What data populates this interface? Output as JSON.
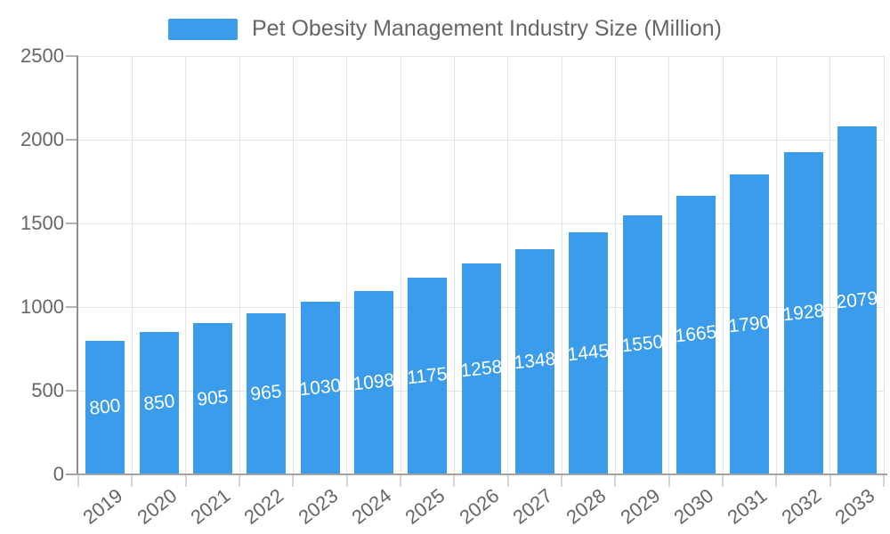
{
  "legend": {
    "series_label": "Pet Obesity Management Industry Size (Million)"
  },
  "chart_data": {
    "type": "bar",
    "title": "Pet Obesity Management Industry Size (Million)",
    "series_name": "Pet Obesity Management Industry Size (Million)",
    "categories": [
      "2019",
      "2020",
      "2021",
      "2022",
      "2023",
      "2024",
      "2025",
      "2026",
      "2027",
      "2028",
      "2029",
      "2030",
      "2031",
      "2032",
      "2033"
    ],
    "values": [
      800,
      850,
      905,
      965,
      1030,
      1098,
      1175,
      1258,
      1348,
      1445,
      1550,
      1665,
      1790,
      1928,
      2079
    ],
    "xlabel": "",
    "ylabel": "",
    "ylim": [
      0,
      2500
    ],
    "yticks": [
      0,
      500,
      1000,
      1500,
      2000,
      2500
    ],
    "grid": true,
    "legend_position": "top-center",
    "value_label_position": "inside-center"
  },
  "colors": {
    "bar": "#3B9CEC",
    "axis_text": "#666666",
    "grid_line": "#E4E4E4",
    "axis_line": "#9A9A9A",
    "value_label_text": "#FFFFFF",
    "background": "#FFFFFF"
  }
}
